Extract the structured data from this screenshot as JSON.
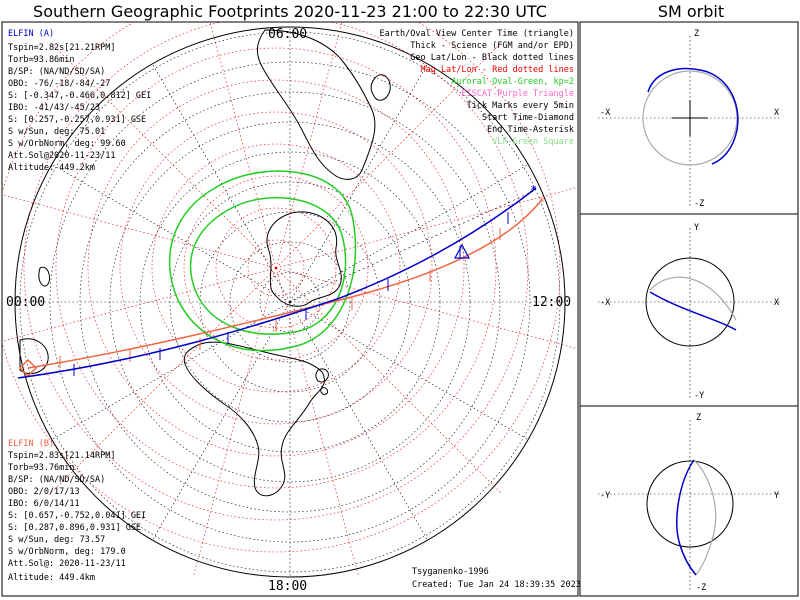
{
  "header": {
    "title": "Southern Geographic Footprints 2020-11-23 21:00 to 22:30 UTC",
    "sm_title": "SM orbit"
  },
  "colors": {
    "elfin_a": "#0000cc",
    "elfin_b": "#ee6644",
    "aurora": "#22cc22",
    "grid_geo": "#000000",
    "grid_mag": "#ee0000",
    "vlf": "#88dd88",
    "eiscat": "#ff66cc",
    "orbit_grey": "#aaaaaa"
  },
  "hour_labels": {
    "top": "06:00",
    "left": "00:00",
    "right": "12:00",
    "bottom": "18:00"
  },
  "elfin_a": {
    "name": "ELFIN (A)",
    "lines": [
      "Tspin=2.82s[21.21RPM]",
      "Torb=93.86min",
      "B/SP: (NA/ND/SD/SA)",
      "OBO: -76/-18/-84/-27",
      "S: [-0.347,-0.466,0.812] GEI",
      "IBO: -41/43/-45/23",
      "S: [0.257,-0.257,0.931] GSE",
      "S w/Sun, deg: 75.01",
      "S w/OrbNorm, deg: 99.60",
      "Att.Sol@2020-11-23/11",
      "Altitude: 449.2km"
    ]
  },
  "elfin_b": {
    "name": "ELFIN (B)",
    "lines": [
      "Tspin=2.83s[21.14RPM]",
      "Torb=93.76min",
      "B/SP: (NA/ND/SD/SA)",
      "OBO: 2/0/17/13",
      "IBO: 6/0/14/11",
      "S: [0.657,-0.752,0.041] GEI",
      "S: [0.287,0.896,0.931] GSE",
      "S w/Sun, deg: 73.57",
      "S w/OrbNorm, deg: 179.0",
      "Att.Sol@: 2020-11-23/11",
      "Altitude: 449.4km"
    ]
  },
  "legend": [
    {
      "text": "Earth/Oval View Center Time (triangle)",
      "color": "#000000"
    },
    {
      "text": "Thick - Science (FGM and/or EPD)",
      "color": "#000000"
    },
    {
      "text": "Geo Lat/Lon - Black dotted lines",
      "color": "#000000"
    },
    {
      "text": "Mag Lat/Lon - Red dotted lines",
      "color": "#ee0000"
    },
    {
      "text": "Auroral Oval-Green, kp=2",
      "color": "#22cc22"
    },
    {
      "text": "EISCAT-Purple Triangle",
      "color": "#ff66cc"
    },
    {
      "text": "Tick Marks every 5min",
      "color": "#000000"
    },
    {
      "text": "Start Time-Diamond",
      "color": "#000000"
    },
    {
      "text": "End Time-Asterisk",
      "color": "#000000"
    },
    {
      "text": "VLF-Green Square",
      "color": "#88dd88"
    }
  ],
  "footer": {
    "model": "Tsyganenko-1996",
    "created": "Created: Tue Jan 24 18:39:35 2023"
  },
  "sm_panels": [
    {
      "top": "Z",
      "bottom": "-Z",
      "left": "-X",
      "right": "X"
    },
    {
      "top": "Y",
      "bottom": "-Y",
      "left": "-X",
      "right": "X"
    },
    {
      "top": "Z",
      "bottom": "-Z",
      "left": "-Y",
      "right": "Y"
    }
  ]
}
